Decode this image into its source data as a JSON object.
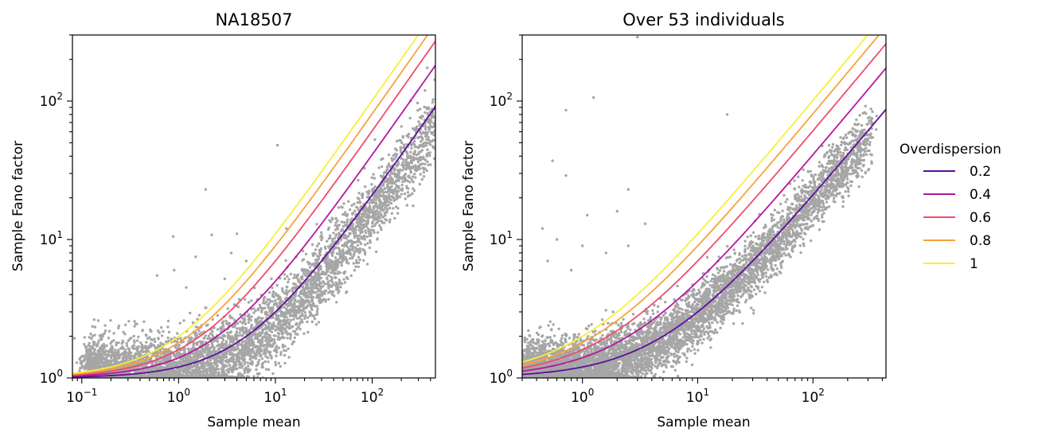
{
  "chart_data": [
    {
      "type": "scatter",
      "title": "NA18507",
      "xlabel": "Sample mean",
      "ylabel": "Sample Fano factor",
      "xscale": "log",
      "yscale": "log",
      "xlim": [
        0.08,
        450
      ],
      "ylim": [
        1,
        300
      ],
      "xticks": [
        {
          "value": 0.1,
          "base": "10",
          "exp": "−1"
        },
        {
          "value": 1,
          "base": "10",
          "exp": "0"
        },
        {
          "value": 10,
          "base": "10",
          "exp": "1"
        },
        {
          "value": 100,
          "base": "10",
          "exp": "2"
        }
      ],
      "yticks": [
        {
          "value": 1,
          "base": "10",
          "exp": "0"
        },
        {
          "value": 10,
          "base": "10",
          "exp": "1"
        },
        {
          "value": 100,
          "base": "10",
          "exp": "2"
        }
      ],
      "points": {
        "n": 6000,
        "trend_min_mean": 0.12,
        "trend_max_mean": 440,
        "trend_overdispersion": 0.15,
        "log_noise_sd": 0.13
      },
      "outliers": [
        [
          1.9,
          23
        ],
        [
          10.5,
          48
        ],
        [
          0.88,
          10.5
        ],
        [
          2.2,
          10.8
        ],
        [
          3.5,
          8
        ],
        [
          5,
          7
        ],
        [
          1.5,
          7.5
        ],
        [
          4,
          11
        ],
        [
          250,
          31
        ],
        [
          440,
          46
        ],
        [
          13,
          12
        ],
        [
          0.6,
          5.5
        ],
        [
          0.9,
          6
        ],
        [
          1.2,
          4.5
        ],
        [
          3,
          5.2
        ]
      ],
      "series": [
        {
          "name": "0.2",
          "overdispersion": 0.2
        },
        {
          "name": "0.4",
          "overdispersion": 0.4
        },
        {
          "name": "0.6",
          "overdispersion": 0.6
        },
        {
          "name": "0.8",
          "overdispersion": 0.8
        },
        {
          "name": "1",
          "overdispersion": 1.0
        }
      ]
    },
    {
      "type": "scatter",
      "title": "Over 53 individuals",
      "xlabel": "Sample mean",
      "ylabel": "Sample Fano factor",
      "xscale": "log",
      "yscale": "log",
      "xlim": [
        0.3,
        430
      ],
      "ylim": [
        1,
        300
      ],
      "xticks": [
        {
          "value": 1,
          "base": "10",
          "exp": "0"
        },
        {
          "value": 10,
          "base": "10",
          "exp": "1"
        },
        {
          "value": 100,
          "base": "10",
          "exp": "2"
        }
      ],
      "yticks": [
        {
          "value": 1,
          "base": "10",
          "exp": "0"
        },
        {
          "value": 10,
          "base": "10",
          "exp": "1"
        },
        {
          "value": 100,
          "base": "10",
          "exp": "2"
        }
      ],
      "points": {
        "n": 7000,
        "trend_min_mean": 0.33,
        "trend_max_mean": 300,
        "trend_overdispersion": 0.18,
        "log_noise_sd": 0.11
      },
      "outliers": [
        [
          3,
          290
        ],
        [
          1.25,
          106
        ],
        [
          0.72,
          86
        ],
        [
          18,
          80
        ],
        [
          0.55,
          37
        ],
        [
          0.72,
          29
        ],
        [
          2.5,
          23
        ],
        [
          1.1,
          15
        ],
        [
          2.0,
          16
        ],
        [
          3.5,
          13
        ],
        [
          0.6,
          10
        ],
        [
          1.6,
          8
        ],
        [
          0.5,
          7
        ],
        [
          1.0,
          9
        ],
        [
          2.5,
          9
        ],
        [
          0.45,
          12
        ],
        [
          0.8,
          6
        ]
      ],
      "series": [
        {
          "name": "0.2",
          "overdispersion": 0.2
        },
        {
          "name": "0.4",
          "overdispersion": 0.4
        },
        {
          "name": "0.6",
          "overdispersion": 0.6
        },
        {
          "name": "0.8",
          "overdispersion": 0.8
        },
        {
          "name": "1",
          "overdispersion": 1.0
        }
      ]
    }
  ],
  "legend": {
    "title": "Overdispersion",
    "placement": "right",
    "items": [
      {
        "label": "0.2",
        "color": "#5c0f9a"
      },
      {
        "label": "0.4",
        "color": "#b5179e"
      },
      {
        "label": "0.6",
        "color": "#ef4d6b"
      },
      {
        "label": "0.8",
        "color": "#f7a23a"
      },
      {
        "label": "1",
        "color": "#f7f035"
      }
    ]
  },
  "point_color": "#000000"
}
